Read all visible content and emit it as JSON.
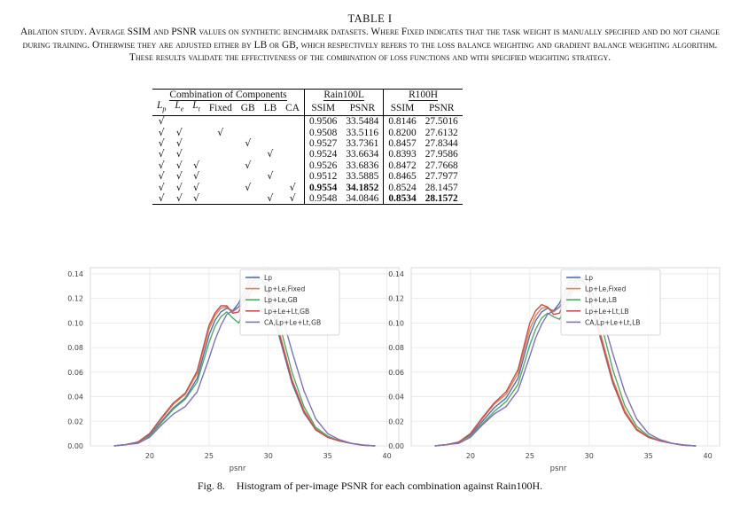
{
  "table_number": "TABLE I",
  "caption": "Ablation study. Average SSIM and PSNR values on synthetic benchmark datasets. Where Fixed indicates that the task weight is manually specified and do not change during training. Otherwise they are adjusted either by LB or GB, which respectively refers to the loss balance weighting and gradient balance weighting algorithm. These results validate the effectiveness of the combination of loss functions and with specified weighting strategy.",
  "table": {
    "group_headers": {
      "components": "Combination of Components",
      "rain100l": "Rain100L",
      "r100h": "R100H"
    },
    "columns": [
      "L_p",
      "L_e",
      "L_t",
      "Fixed",
      "GB",
      "LB",
      "CA"
    ],
    "metric_headers": [
      "SSIM",
      "PSNR",
      "SSIM",
      "PSNR"
    ],
    "check_mark": "√",
    "rows": [
      {
        "Lp": "√",
        "Le": "",
        "Lt": "",
        "Fixed": "",
        "GB": "",
        "LB": "",
        "CA": "",
        "ssim_l": "0.9506",
        "psnr_l": "33.5484",
        "ssim_h": "0.8146",
        "psnr_h": "27.5016"
      },
      {
        "Lp": "√",
        "Le": "√",
        "Lt": "",
        "Fixed": "√",
        "GB": "",
        "LB": "",
        "CA": "",
        "ssim_l": "0.9508",
        "psnr_l": "33.5116",
        "ssim_h": "0.8200",
        "psnr_h": "27.6132"
      },
      {
        "Lp": "√",
        "Le": "√",
        "Lt": "",
        "Fixed": "",
        "GB": "√",
        "LB": "",
        "CA": "",
        "ssim_l": "0.9527",
        "psnr_l": "33.7361",
        "ssim_h": "0.8457",
        "psnr_h": "27.8344"
      },
      {
        "Lp": "√",
        "Le": "√",
        "Lt": "",
        "Fixed": "",
        "GB": "",
        "LB": "√",
        "CA": "",
        "ssim_l": "0.9524",
        "psnr_l": "33.6634",
        "ssim_h": "0.8393",
        "psnr_h": "27.9586"
      },
      {
        "Lp": "√",
        "Le": "√",
        "Lt": "√",
        "Fixed": "",
        "GB": "√",
        "LB": "",
        "CA": "",
        "ssim_l": "0.9526",
        "psnr_l": "33.6836",
        "ssim_h": "0.8472",
        "psnr_h": "27.7668"
      },
      {
        "Lp": "√",
        "Le": "√",
        "Lt": "√",
        "Fixed": "",
        "GB": "",
        "LB": "√",
        "CA": "",
        "ssim_l": "0.9512",
        "psnr_l": "33.5885",
        "ssim_h": "0.8465",
        "psnr_h": "27.7977"
      },
      {
        "Lp": "√",
        "Le": "√",
        "Lt": "√",
        "Fixed": "",
        "GB": "√",
        "LB": "",
        "CA": "√",
        "ssim_l": "0.9554",
        "psnr_l": "34.1852",
        "ssim_h": "0.8524",
        "psnr_h": "28.1457"
      },
      {
        "Lp": "√",
        "Le": "√",
        "Lt": "√",
        "Fixed": "",
        "GB": "",
        "LB": "√",
        "CA": "√",
        "ssim_l": "0.9548",
        "psnr_l": "34.0846",
        "ssim_h": "0.8534",
        "psnr_h": "28.1572"
      }
    ],
    "bold": [
      [
        6,
        "ssim_l"
      ],
      [
        6,
        "psnr_l"
      ],
      [
        7,
        "ssim_h"
      ],
      [
        7,
        "psnr_h"
      ]
    ]
  },
  "chart_data": [
    {
      "type": "line",
      "title": "",
      "xlabel": "psnr",
      "ylabel": "",
      "xlim": [
        15,
        41
      ],
      "ylim": [
        0,
        0.145
      ],
      "xticks": [
        20,
        25,
        30,
        35,
        40
      ],
      "yticks": [
        0.0,
        0.02,
        0.04,
        0.06,
        0.08,
        0.1,
        0.12,
        0.14
      ],
      "grid": true,
      "legend_position": "upper-right",
      "x": [
        17,
        18,
        19,
        20,
        21,
        22,
        23,
        24,
        25,
        25.5,
        26,
        26.5,
        27,
        27.5,
        28,
        28.5,
        29,
        29.5,
        30,
        31,
        32,
        33,
        34,
        35,
        36,
        37,
        38,
        39
      ],
      "series": [
        {
          "name": "Lp",
          "color": "#4c72b0",
          "values": [
            0.0,
            0.001,
            0.003,
            0.009,
            0.02,
            0.031,
            0.039,
            0.055,
            0.09,
            0.102,
            0.109,
            0.112,
            0.11,
            0.116,
            0.127,
            0.137,
            0.139,
            0.135,
            0.121,
            0.086,
            0.051,
            0.027,
            0.013,
            0.007,
            0.004,
            0.002,
            0.0005,
            0.0
          ]
        },
        {
          "name": "Lp+Le,Fixed",
          "color": "#dd8452",
          "values": [
            0.0,
            0.001,
            0.003,
            0.01,
            0.022,
            0.034,
            0.042,
            0.059,
            0.095,
            0.106,
            0.112,
            0.113,
            0.109,
            0.113,
            0.123,
            0.133,
            0.138,
            0.136,
            0.125,
            0.09,
            0.054,
            0.029,
            0.014,
            0.007,
            0.004,
            0.002,
            0.0005,
            0.0
          ]
        },
        {
          "name": "Lp+Le,GB",
          "color": "#55a868",
          "values": [
            0.0,
            0.001,
            0.003,
            0.008,
            0.019,
            0.03,
            0.038,
            0.052,
            0.084,
            0.097,
            0.105,
            0.109,
            0.104,
            0.1,
            0.111,
            0.125,
            0.134,
            0.136,
            0.13,
            0.097,
            0.06,
            0.032,
            0.015,
            0.008,
            0.004,
            0.002,
            0.0005,
            0.0
          ]
        },
        {
          "name": "Lp+Le+Lt,GB",
          "color": "#c44e52",
          "values": [
            0.0,
            0.001,
            0.003,
            0.01,
            0.023,
            0.035,
            0.043,
            0.061,
            0.098,
            0.108,
            0.114,
            0.114,
            0.108,
            0.109,
            0.12,
            0.131,
            0.137,
            0.135,
            0.124,
            0.088,
            0.053,
            0.028,
            0.013,
            0.007,
            0.004,
            0.002,
            0.0005,
            0.0
          ]
        },
        {
          "name": "CA,Lp+Le+Lt,GB",
          "color": "#8172b2",
          "values": [
            0.0,
            0.001,
            0.002,
            0.007,
            0.017,
            0.026,
            0.032,
            0.044,
            0.071,
            0.086,
            0.098,
            0.107,
            0.11,
            0.113,
            0.118,
            0.125,
            0.13,
            0.133,
            0.132,
            0.111,
            0.077,
            0.045,
            0.022,
            0.01,
            0.005,
            0.002,
            0.0008,
            0.0
          ]
        }
      ]
    },
    {
      "type": "line",
      "title": "",
      "xlabel": "psnr",
      "ylabel": "",
      "xlim": [
        15,
        41
      ],
      "ylim": [
        0,
        0.145
      ],
      "xticks": [
        20,
        25,
        30,
        35,
        40
      ],
      "yticks": [
        0.0,
        0.02,
        0.04,
        0.06,
        0.08,
        0.1,
        0.12,
        0.14
      ],
      "grid": true,
      "legend_position": "upper-right",
      "x": [
        17,
        18,
        19,
        20,
        21,
        22,
        23,
        24,
        25,
        25.5,
        26,
        26.5,
        27,
        27.5,
        28,
        28.5,
        29,
        29.5,
        30,
        31,
        32,
        33,
        34,
        35,
        36,
        37,
        38,
        39
      ],
      "series": [
        {
          "name": "Lp",
          "color": "#4c72b0",
          "values": [
            0.0,
            0.001,
            0.003,
            0.009,
            0.02,
            0.031,
            0.039,
            0.055,
            0.09,
            0.102,
            0.109,
            0.112,
            0.11,
            0.116,
            0.127,
            0.137,
            0.139,
            0.135,
            0.121,
            0.086,
            0.051,
            0.027,
            0.013,
            0.007,
            0.004,
            0.002,
            0.0005,
            0.0
          ]
        },
        {
          "name": "Lp+Le,Fixed",
          "color": "#dd8452",
          "values": [
            0.0,
            0.001,
            0.003,
            0.01,
            0.022,
            0.034,
            0.042,
            0.059,
            0.095,
            0.106,
            0.112,
            0.113,
            0.109,
            0.113,
            0.123,
            0.133,
            0.138,
            0.136,
            0.125,
            0.09,
            0.054,
            0.029,
            0.014,
            0.007,
            0.004,
            0.002,
            0.0005,
            0.0
          ]
        },
        {
          "name": "Lp+Le,LB",
          "color": "#55a868",
          "values": [
            0.0,
            0.001,
            0.003,
            0.008,
            0.018,
            0.028,
            0.036,
            0.05,
            0.082,
            0.095,
            0.104,
            0.108,
            0.105,
            0.103,
            0.112,
            0.124,
            0.133,
            0.137,
            0.133,
            0.1,
            0.062,
            0.033,
            0.016,
            0.008,
            0.004,
            0.002,
            0.0005,
            0.0
          ]
        },
        {
          "name": "Lp+Le+Lt,LB",
          "color": "#c44e52",
          "values": [
            0.0,
            0.001,
            0.003,
            0.01,
            0.023,
            0.035,
            0.044,
            0.062,
            0.1,
            0.11,
            0.115,
            0.113,
            0.107,
            0.108,
            0.119,
            0.13,
            0.136,
            0.134,
            0.123,
            0.087,
            0.052,
            0.027,
            0.013,
            0.007,
            0.004,
            0.002,
            0.0005,
            0.0
          ]
        },
        {
          "name": "CA,Lp+Le+Lt,LB",
          "color": "#8172b2",
          "values": [
            0.0,
            0.001,
            0.002,
            0.007,
            0.017,
            0.026,
            0.032,
            0.045,
            0.073,
            0.088,
            0.099,
            0.107,
            0.11,
            0.113,
            0.119,
            0.126,
            0.131,
            0.133,
            0.131,
            0.109,
            0.075,
            0.044,
            0.022,
            0.01,
            0.005,
            0.002,
            0.0008,
            0.0
          ]
        }
      ]
    }
  ],
  "figure_caption": {
    "label": "Fig. 8.",
    "text": "Histogram of per-image PSNR for each combination against Rain100H."
  }
}
